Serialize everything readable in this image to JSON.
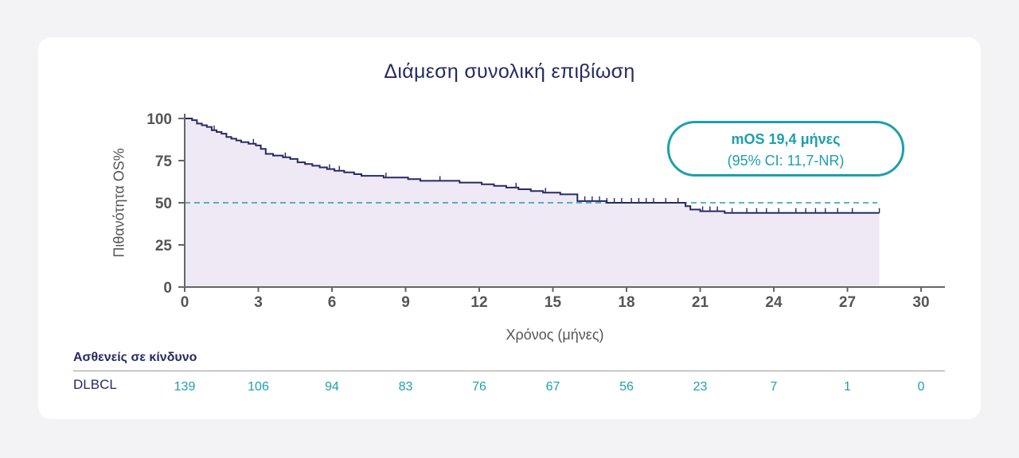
{
  "chart_data": {
    "type": "line",
    "title": "Διάμεση συνολική επιβίωση",
    "xlabel": "Χρόνος (μήνες)",
    "ylabel": "Πιθανότητα OS%",
    "xlim": [
      0,
      30
    ],
    "ylim": [
      0,
      100
    ],
    "xticks": [
      0,
      3,
      6,
      9,
      12,
      15,
      18,
      21,
      24,
      27,
      30
    ],
    "yticks": [
      0,
      25,
      50,
      75,
      100
    ],
    "reference_line": {
      "y": 50,
      "style": "dashed",
      "color": "#1d9fae"
    },
    "series": [
      {
        "color": "#262a63",
        "fill": "#eee9f5",
        "x": [
          0,
          0.3,
          0.5,
          0.7,
          0.9,
          1.1,
          1.3,
          1.5,
          1.7,
          1.9,
          2.1,
          2.3,
          2.6,
          2.9,
          3.1,
          3.3,
          3.6,
          3.8,
          4.0,
          4.3,
          4.6,
          4.9,
          5.2,
          5.5,
          5.8,
          6.1,
          6.5,
          6.9,
          7.2,
          7.7,
          8.1,
          8.6,
          9.1,
          9.6,
          10.2,
          10.7,
          11.2,
          11.6,
          12.1,
          12.6,
          13.1,
          13.6,
          14.1,
          14.6,
          15.0,
          15.3,
          15.7,
          16.0,
          16.6,
          17.2,
          18.0,
          19.0,
          19.3,
          20.0,
          20.4,
          20.6,
          21.0,
          22.0,
          23.0,
          24.0,
          25.0,
          26.0,
          27.0,
          28.0,
          28.3
        ],
        "y": [
          100,
          99,
          97,
          96,
          95,
          93,
          92,
          91,
          89,
          88,
          87,
          86,
          85,
          84,
          82,
          79,
          78,
          78,
          77,
          76,
          74,
          73,
          72,
          71,
          70,
          69,
          68,
          67,
          66,
          66,
          65,
          65,
          64,
          63,
          63,
          63,
          62,
          62,
          61,
          60,
          59,
          58,
          57,
          56,
          56,
          55,
          55,
          51,
          51,
          50,
          50,
          50,
          50,
          50,
          48,
          46,
          45,
          44,
          44,
          44,
          44,
          44,
          44,
          44,
          44
        ],
        "censor_x": [
          1.2,
          2.8,
          4.1,
          5.9,
          6.3,
          8.2,
          10.4,
          13.5,
          14.7,
          16.3,
          16.6,
          16.9,
          17.2,
          17.5,
          17.8,
          18.2,
          18.5,
          18.8,
          19.1,
          19.6,
          20.1,
          21.1,
          21.4,
          21.7,
          22.3,
          22.9,
          23.3,
          23.7,
          24.2,
          24.9,
          25.3,
          25.7,
          26.1,
          26.6,
          27.2,
          28.3
        ]
      }
    ]
  },
  "annotation": {
    "line1": "mOS 19,4 μήνες",
    "line2": "(95% CI: 11,7-NR)"
  },
  "risk_table": {
    "title": "Ασθενείς σε κίνδυνο",
    "row_label": "DLBCL",
    "times": [
      0,
      3,
      6,
      9,
      12,
      15,
      18,
      21,
      24,
      27,
      30
    ],
    "values": [
      "139",
      "106",
      "94",
      "83",
      "76",
      "67",
      "56",
      "23",
      "7",
      "1",
      "0"
    ]
  }
}
